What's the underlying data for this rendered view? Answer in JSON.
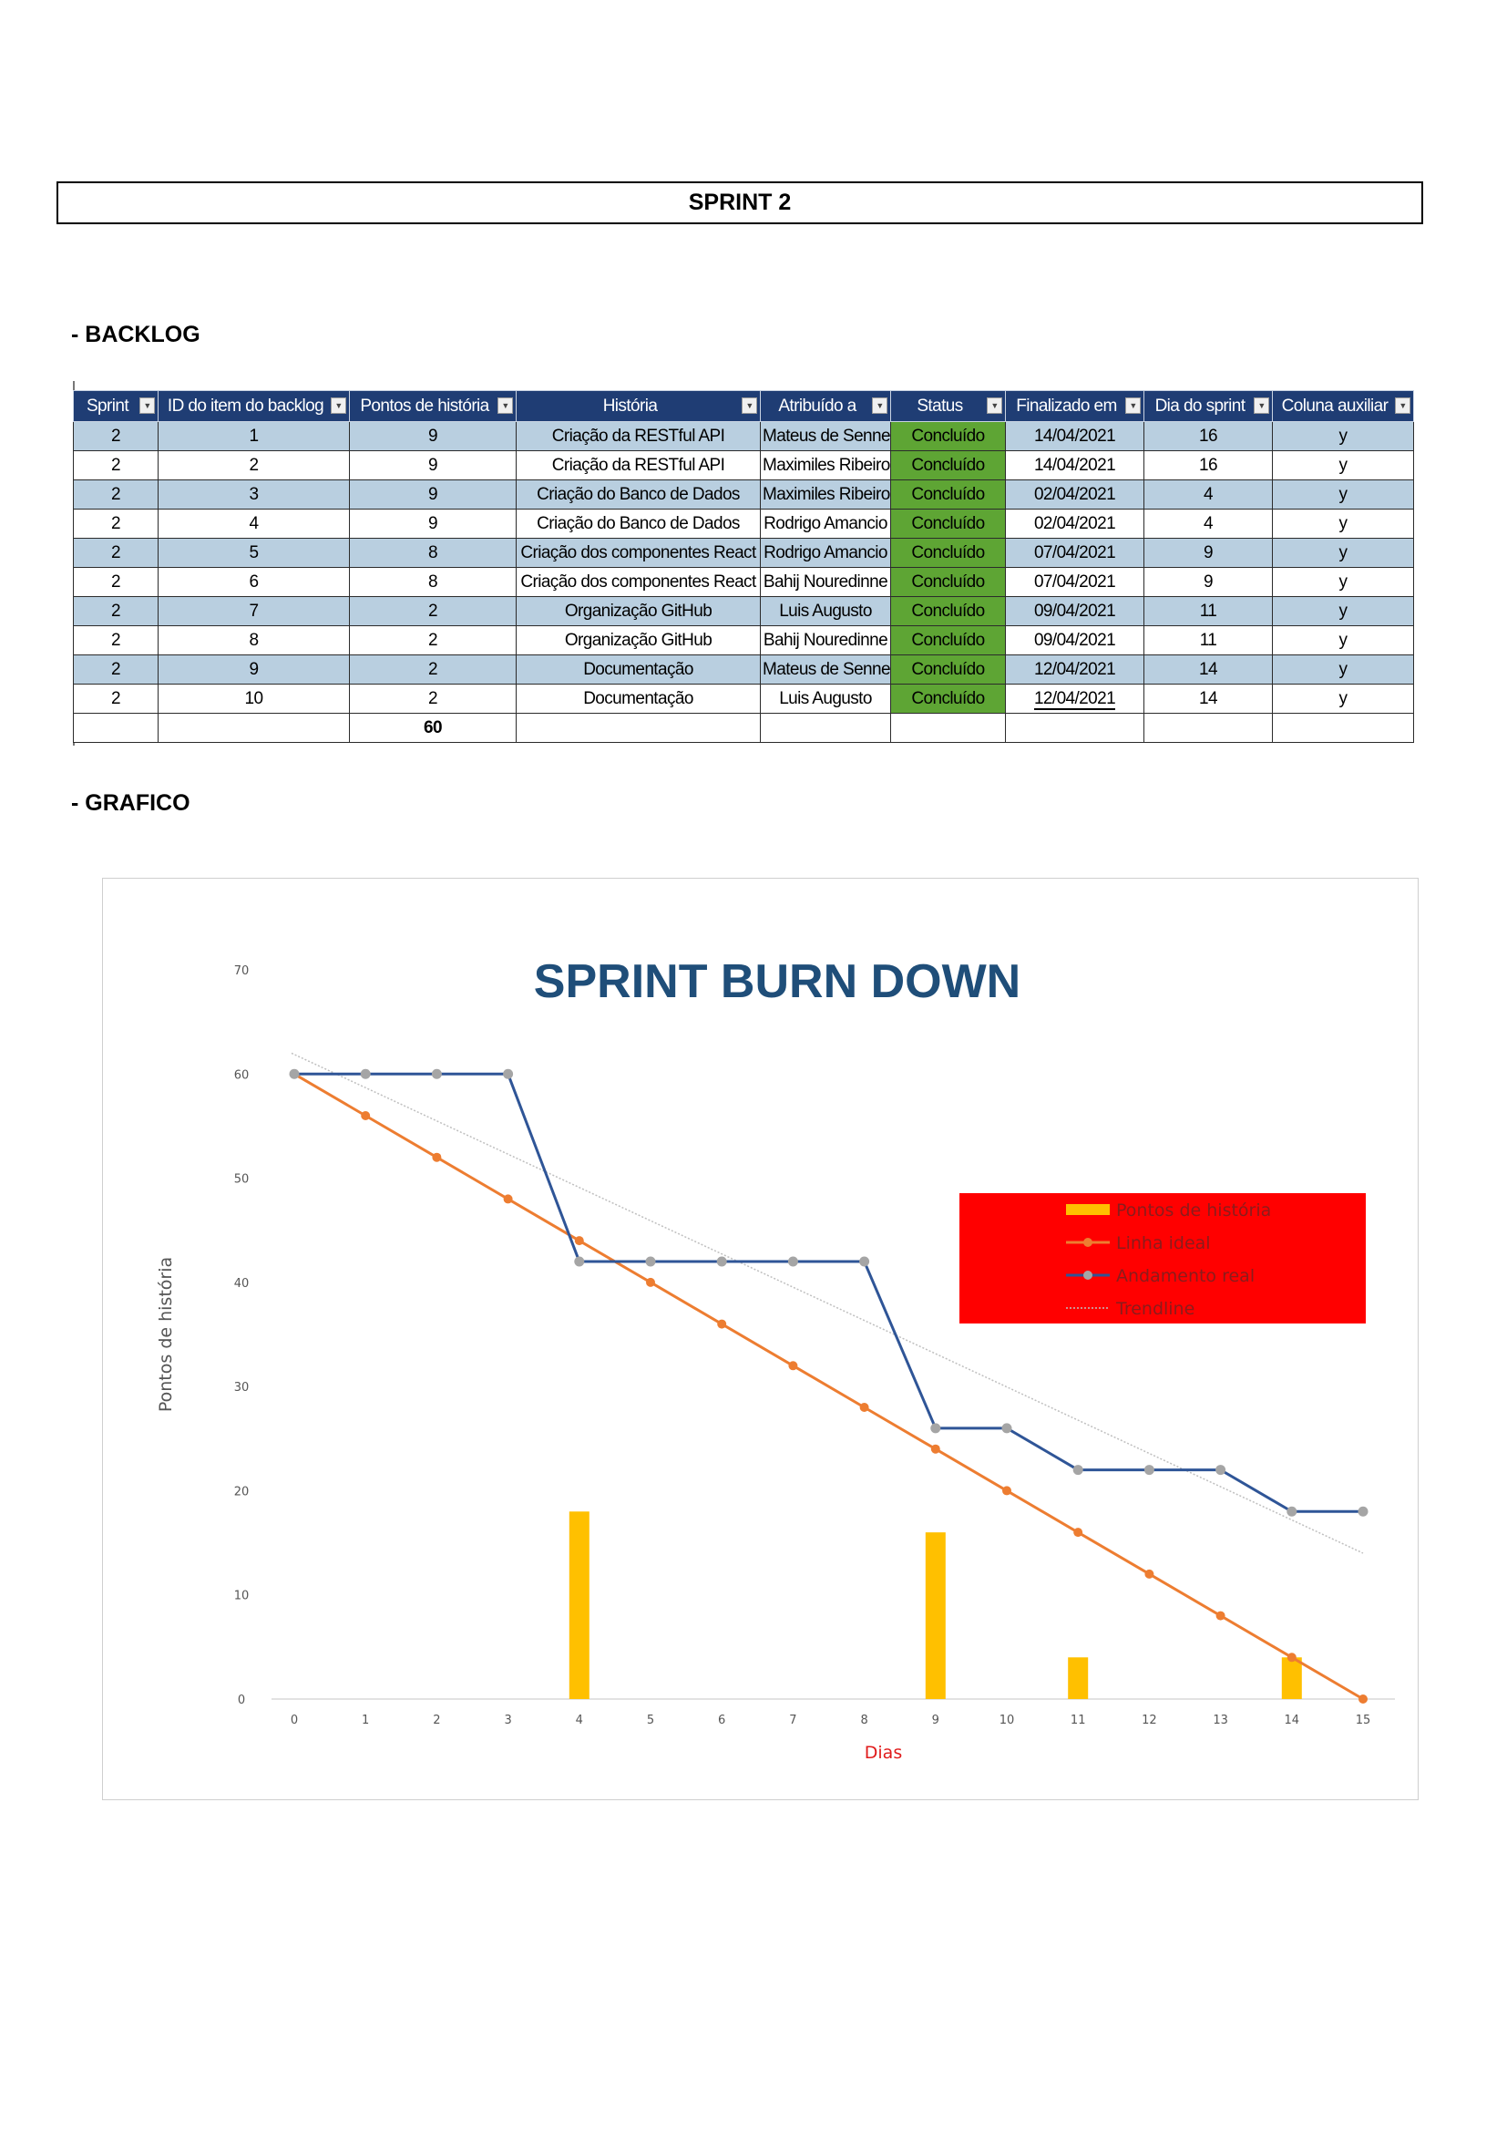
{
  "page": {
    "title": "SPRINT 2",
    "backlog_heading": "- BACKLOG",
    "chart_heading": "- GRAFICO"
  },
  "backlog": {
    "columns": [
      "Sprint",
      "ID do item do backlog",
      "Pontos de história",
      "História",
      "Atribuído a",
      "Status",
      "Finalizado em",
      "Dia do sprint",
      "Coluna auxiliar"
    ],
    "rows": [
      [
        "2",
        "1",
        "9",
        "Criação da RESTful API",
        "Mateus de Senne",
        "Concluído",
        "14/04/2021",
        "16",
        "y"
      ],
      [
        "2",
        "2",
        "9",
        "Criação da RESTful API",
        "Maximiles Ribeiro",
        "Concluído",
        "14/04/2021",
        "16",
        "y"
      ],
      [
        "2",
        "3",
        "9",
        "Criação do Banco de Dados",
        "Maximiles Ribeiro",
        "Concluído",
        "02/04/2021",
        "4",
        "y"
      ],
      [
        "2",
        "4",
        "9",
        "Criação do Banco de Dados",
        "Rodrigo Amancio",
        "Concluído",
        "02/04/2021",
        "4",
        "y"
      ],
      [
        "2",
        "5",
        "8",
        "Criação dos componentes React",
        "Rodrigo Amancio",
        "Concluído",
        "07/04/2021",
        "9",
        "y"
      ],
      [
        "2",
        "6",
        "8",
        "Criação dos componentes React",
        "Bahij Nouredinne",
        "Concluído",
        "07/04/2021",
        "9",
        "y"
      ],
      [
        "2",
        "7",
        "2",
        "Organização GitHub",
        "Luis Augusto",
        "Concluído",
        "09/04/2021",
        "11",
        "y"
      ],
      [
        "2",
        "8",
        "2",
        "Organização GitHub",
        "Bahij Nouredinne",
        "Concluído",
        "09/04/2021",
        "11",
        "y"
      ],
      [
        "2",
        "9",
        "2",
        "Documentação",
        "Mateus de Senne",
        "Concluído",
        "12/04/2021",
        "14",
        "y"
      ],
      [
        "2",
        "10",
        "2",
        "Documentação",
        "Luis Augusto",
        "Concluído",
        "12/04/2021",
        "14",
        "y"
      ]
    ],
    "total_points": "60",
    "colors": {
      "header": "#1f3d74",
      "band": "#b9cfe0",
      "status": "#5ea534"
    }
  },
  "chart_data": {
    "type": "bar",
    "title": "SPRINT BURN DOWN",
    "xlabel": "Dias",
    "ylabel": "Pontos de história",
    "x": [
      0,
      1,
      2,
      3,
      4,
      5,
      6,
      7,
      8,
      9,
      10,
      11,
      12,
      13,
      14,
      15
    ],
    "ylim": [
      0,
      70
    ],
    "yticks": [
      0,
      10,
      20,
      30,
      40,
      50,
      60,
      70
    ],
    "legend_position": "right",
    "legend_background": "#ff0000",
    "series": [
      {
        "name": "Pontos de história",
        "type": "bar",
        "color": "#ffc000",
        "values": [
          0,
          0,
          0,
          0,
          18,
          0,
          0,
          0,
          0,
          16,
          0,
          4,
          0,
          0,
          4,
          0
        ]
      },
      {
        "name": "Linha ideal",
        "type": "line",
        "color": "#ed7d31",
        "values": [
          60,
          56,
          52,
          48,
          44,
          40,
          36,
          32,
          28,
          24,
          20,
          16,
          12,
          8,
          4,
          0
        ]
      },
      {
        "name": "Andamento real",
        "type": "line",
        "color": "#2f5597",
        "marker_color": "#a5a5a5",
        "values": [
          60,
          60,
          60,
          60,
          42,
          42,
          42,
          42,
          42,
          26,
          26,
          22,
          22,
          22,
          18,
          18
        ]
      },
      {
        "name": "Trendline",
        "type": "trendline",
        "color": "#bfbfbf",
        "values": [
          62,
          58.8,
          55.6,
          52.4,
          49.2,
          46,
          42.8,
          39.6,
          36.4,
          33.2,
          30,
          26.8,
          23.6,
          20.4,
          17.2,
          14
        ]
      }
    ]
  }
}
